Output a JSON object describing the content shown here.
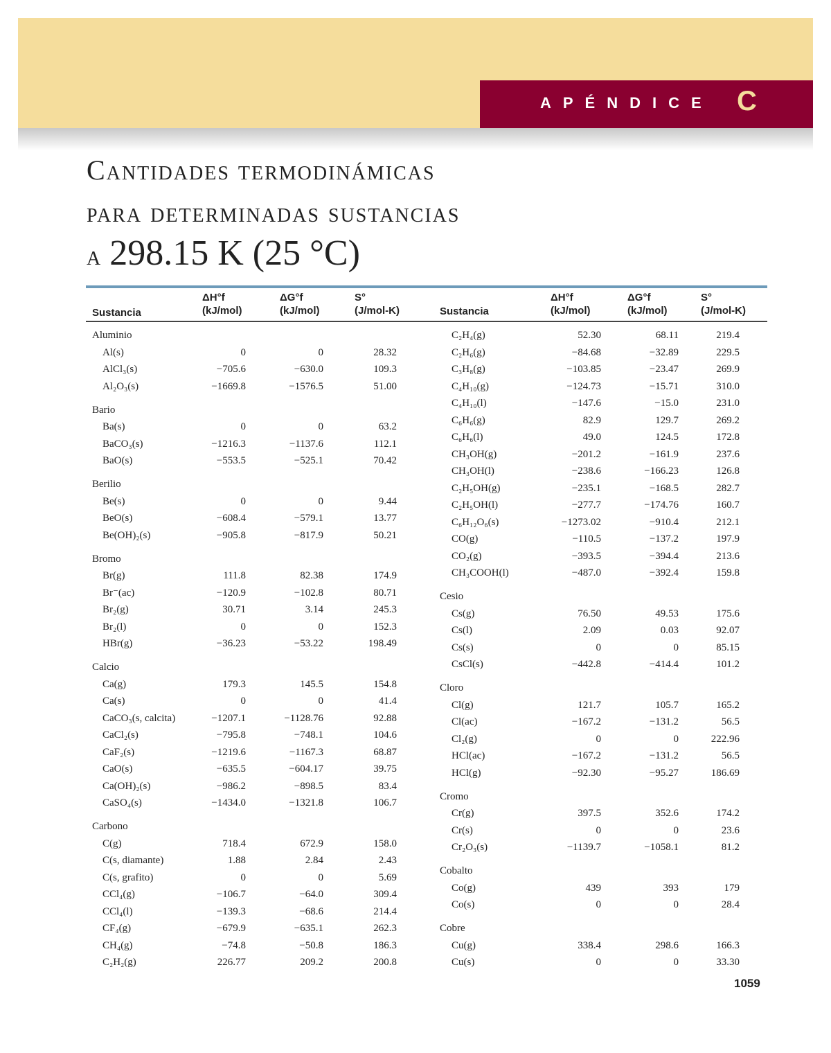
{
  "header": {
    "appendix_label": "APÉNDICE",
    "appendix_letter": "C",
    "band_color": "#f5dd9c",
    "accent_color": "#8a0030",
    "rule_color": "#6d9bba"
  },
  "title": {
    "line1": "Cantidades termodinámicas",
    "line2": "para determinadas sustancias",
    "line3_prefix": "a",
    "line3_main": "298.15 K (25 °C)"
  },
  "columns": {
    "substance": "Sustancia",
    "dh_symbol": "ΔH°f",
    "dh_unit": "(kJ/mol)",
    "dg_symbol": "ΔG°f",
    "dg_unit": "(kJ/mol)",
    "s_symbol": "S°",
    "s_unit": "(J/mol-K)"
  },
  "left_groups": [
    {
      "name": "Aluminio",
      "rows": [
        [
          "Al(s)",
          "0",
          "0",
          "28.32"
        ],
        [
          "AlCl₃(s)",
          "−705.6",
          "−630.0",
          "109.3"
        ],
        [
          "Al₂O₃(s)",
          "−1669.8",
          "−1576.5",
          "51.00"
        ]
      ]
    },
    {
      "name": "Bario",
      "rows": [
        [
          "Ba(s)",
          "0",
          "0",
          "63.2"
        ],
        [
          "BaCO₃(s)",
          "−1216.3",
          "−1137.6",
          "112.1"
        ],
        [
          "BaO(s)",
          "−553.5",
          "−525.1",
          "70.42"
        ]
      ]
    },
    {
      "name": "Berilio",
      "rows": [
        [
          "Be(s)",
          "0",
          "0",
          "9.44"
        ],
        [
          "BeO(s)",
          "−608.4",
          "−579.1",
          "13.77"
        ],
        [
          "Be(OH)₂(s)",
          "−905.8",
          "−817.9",
          "50.21"
        ]
      ]
    },
    {
      "name": "Bromo",
      "rows": [
        [
          "Br(g)",
          "111.8",
          "82.38",
          "174.9"
        ],
        [
          "Br⁻(ac)",
          "−120.9",
          "−102.8",
          "80.71"
        ],
        [
          "Br₂(g)",
          "30.71",
          "3.14",
          "245.3"
        ],
        [
          "Br₂(l)",
          "0",
          "0",
          "152.3"
        ],
        [
          "HBr(g)",
          "−36.23",
          "−53.22",
          "198.49"
        ]
      ]
    },
    {
      "name": "Calcio",
      "rows": [
        [
          "Ca(g)",
          "179.3",
          "145.5",
          "154.8"
        ],
        [
          "Ca(s)",
          "0",
          "0",
          "41.4"
        ],
        [
          "CaCO₃(s, calcita)",
          "−1207.1",
          "−1128.76",
          "92.88"
        ],
        [
          "CaCl₂(s)",
          "−795.8",
          "−748.1",
          "104.6"
        ],
        [
          "CaF₂(s)",
          "−1219.6",
          "−1167.3",
          "68.87"
        ],
        [
          "CaO(s)",
          "−635.5",
          "−604.17",
          "39.75"
        ],
        [
          "Ca(OH)₂(s)",
          "−986.2",
          "−898.5",
          "83.4"
        ],
        [
          "CaSO₄(s)",
          "−1434.0",
          "−1321.8",
          "106.7"
        ]
      ]
    },
    {
      "name": "Carbono",
      "rows": [
        [
          "C(g)",
          "718.4",
          "672.9",
          "158.0"
        ],
        [
          "C(s, diamante)",
          "1.88",
          "2.84",
          "2.43"
        ],
        [
          "C(s, grafito)",
          "0",
          "0",
          "5.69"
        ],
        [
          "CCl₄(g)",
          "−106.7",
          "−64.0",
          "309.4"
        ],
        [
          "CCl₄(l)",
          "−139.3",
          "−68.6",
          "214.4"
        ],
        [
          "CF₄(g)",
          "−679.9",
          "−635.1",
          "262.3"
        ],
        [
          "CH₄(g)",
          "−74.8",
          "−50.8",
          "186.3"
        ],
        [
          "C₂H₂(g)",
          "226.77",
          "209.2",
          "200.8"
        ]
      ]
    }
  ],
  "right_groups": [
    {
      "name": "",
      "rows": [
        [
          "C₂H₄(g)",
          "52.30",
          "68.11",
          "219.4"
        ],
        [
          "C₂H₆(g)",
          "−84.68",
          "−32.89",
          "229.5"
        ],
        [
          "C₃H₈(g)",
          "−103.85",
          "−23.47",
          "269.9"
        ],
        [
          "C₄H₁₀(g)",
          "−124.73",
          "−15.71",
          "310.0"
        ],
        [
          "C₄H₁₀(l)",
          "−147.6",
          "−15.0",
          "231.0"
        ],
        [
          "C₆H₆(g)",
          "82.9",
          "129.7",
          "269.2"
        ],
        [
          "C₆H₆(l)",
          "49.0",
          "124.5",
          "172.8"
        ],
        [
          "CH₃OH(g)",
          "−201.2",
          "−161.9",
          "237.6"
        ],
        [
          "CH₃OH(l)",
          "−238.6",
          "−166.23",
          "126.8"
        ],
        [
          "C₂H₅OH(g)",
          "−235.1",
          "−168.5",
          "282.7"
        ],
        [
          "C₂H₅OH(l)",
          "−277.7",
          "−174.76",
          "160.7"
        ],
        [
          "C₆H₁₂O₆(s)",
          "−1273.02",
          "−910.4",
          "212.1"
        ],
        [
          "CO(g)",
          "−110.5",
          "−137.2",
          "197.9"
        ],
        [
          "CO₂(g)",
          "−393.5",
          "−394.4",
          "213.6"
        ],
        [
          "CH₃COOH(l)",
          "−487.0",
          "−392.4",
          "159.8"
        ]
      ]
    },
    {
      "name": "Cesio",
      "rows": [
        [
          "Cs(g)",
          "76.50",
          "49.53",
          "175.6"
        ],
        [
          "Cs(l)",
          "2.09",
          "0.03",
          "92.07"
        ],
        [
          "Cs(s)",
          "0",
          "0",
          "85.15"
        ],
        [
          "CsCl(s)",
          "−442.8",
          "−414.4",
          "101.2"
        ]
      ]
    },
    {
      "name": "Cloro",
      "rows": [
        [
          "Cl(g)",
          "121.7",
          "105.7",
          "165.2"
        ],
        [
          "Cl(ac)",
          "−167.2",
          "−131.2",
          "56.5"
        ],
        [
          "Cl₂(g)",
          "0",
          "0",
          "222.96"
        ],
        [
          "HCl(ac)",
          "−167.2",
          "−131.2",
          "56.5"
        ],
        [
          "HCl(g)",
          "−92.30",
          "−95.27",
          "186.69"
        ]
      ]
    },
    {
      "name": "Cromo",
      "rows": [
        [
          "Cr(g)",
          "397.5",
          "352.6",
          "174.2"
        ],
        [
          "Cr(s)",
          "0",
          "0",
          "23.6"
        ],
        [
          "Cr₂O₃(s)",
          "−1139.7",
          "−1058.1",
          "81.2"
        ]
      ]
    },
    {
      "name": "Cobalto",
      "rows": [
        [
          "Co(g)",
          "439",
          "393",
          "179"
        ],
        [
          "Co(s)",
          "0",
          "0",
          "28.4"
        ]
      ]
    },
    {
      "name": "Cobre",
      "rows": [
        [
          "Cu(g)",
          "338.4",
          "298.6",
          "166.3"
        ],
        [
          "Cu(s)",
          "0",
          "0",
          "33.30"
        ]
      ]
    }
  ],
  "page_number": "1059"
}
